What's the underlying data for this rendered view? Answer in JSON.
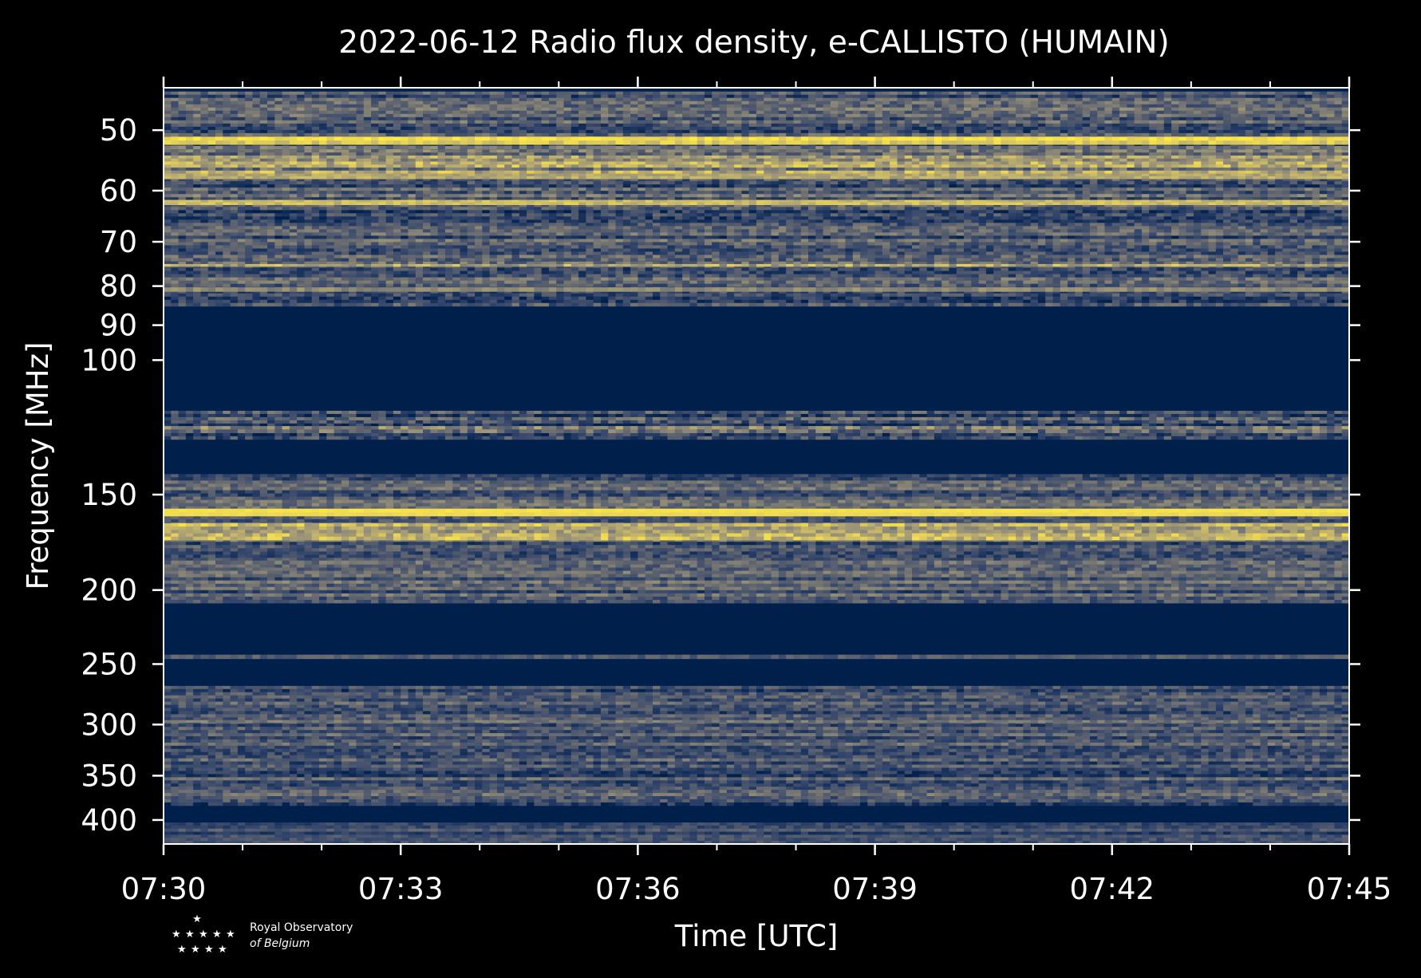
{
  "chart_data": {
    "type": "heatmap",
    "title": "2022-06-12 Radio flux density, e-CALLISTO (HUMAIN)",
    "xlabel": "Time [UTC]",
    "ylabel": "Frequency [MHz]",
    "x_tick_labels": [
      "07:30",
      "07:33",
      "07:36",
      "07:39",
      "07:42",
      "07:45"
    ],
    "x_tick_minutes": [
      0,
      3,
      6,
      9,
      12,
      15
    ],
    "x_minor_step_minutes": 1,
    "xlim_minutes": [
      0,
      15
    ],
    "y_scale": "log",
    "ylim": [
      44,
      430
    ],
    "y_ticks": [
      50,
      60,
      70,
      80,
      90,
      100,
      150,
      200,
      250,
      300,
      350,
      400
    ],
    "y_tick_labels": [
      "50",
      "60",
      "70",
      "80",
      "90",
      "100",
      "150",
      "200",
      "250",
      "300",
      "350",
      "400"
    ],
    "colormap": [
      "#00204c",
      "#31446b",
      "#666970",
      "#958f78",
      "#cbba69",
      "#ffe945"
    ],
    "background_value": 0.0,
    "bands": [
      {
        "f_low": 44.5,
        "f_high": 85,
        "level": 0.32,
        "variability": 0.35
      },
      {
        "f_low": 51,
        "f_high": 52.2,
        "level": 0.9,
        "variability": 0.2
      },
      {
        "f_low": 53,
        "f_high": 57,
        "level": 0.55,
        "variability": 0.4
      },
      {
        "f_low": 57,
        "f_high": 57.9,
        "level": 0.8,
        "variability": 0.2
      },
      {
        "f_low": 61.7,
        "f_high": 62.6,
        "level": 0.75,
        "variability": 0.2
      },
      {
        "f_low": 74.3,
        "f_high": 75.4,
        "level": 0.6,
        "variability": 0.4
      },
      {
        "f_low": 80.3,
        "f_high": 81.3,
        "level": 0.6,
        "variability": 0.2
      },
      {
        "f_low": 116.5,
        "f_high": 127,
        "level": 0.3,
        "variability": 0.4
      },
      {
        "f_low": 122,
        "f_high": 124.5,
        "level": 0.55,
        "variability": 0.45
      },
      {
        "f_low": 141,
        "f_high": 208,
        "level": 0.33,
        "variability": 0.3
      },
      {
        "f_low": 156.5,
        "f_high": 160,
        "level": 0.95,
        "variability": 0.05
      },
      {
        "f_low": 163.5,
        "f_high": 172,
        "level": 0.65,
        "variability": 0.35
      },
      {
        "f_low": 183,
        "f_high": 185,
        "level": 0.55,
        "variability": 0.3
      },
      {
        "f_low": 243,
        "f_high": 246,
        "level": 0.25,
        "variability": 0.2
      },
      {
        "f_low": 267,
        "f_high": 383,
        "level": 0.28,
        "variability": 0.3
      },
      {
        "f_low": 296,
        "f_high": 298,
        "level": 0.45,
        "variability": 0.25
      },
      {
        "f_low": 403,
        "f_high": 430,
        "level": 0.25,
        "variability": 0.2
      }
    ],
    "logo_text": [
      "Royal Observatory",
      "of Belgium"
    ]
  }
}
